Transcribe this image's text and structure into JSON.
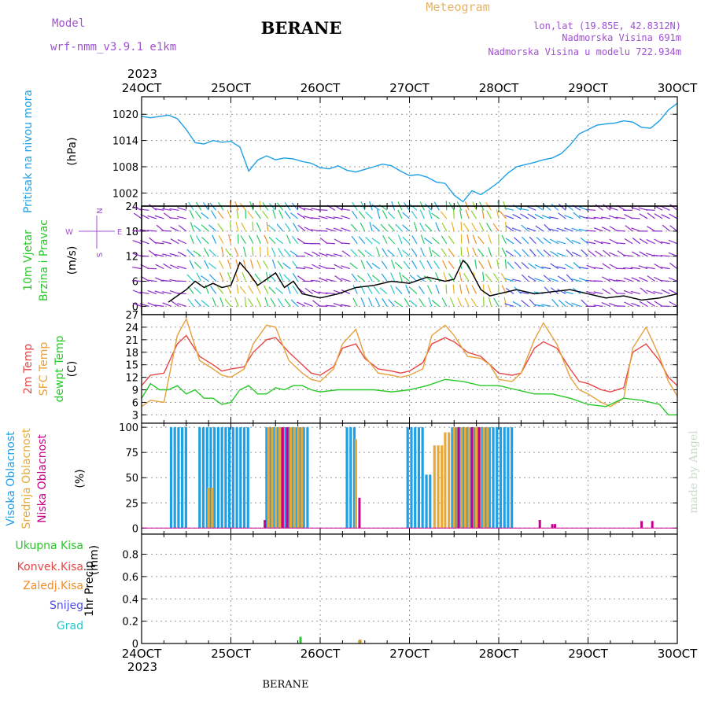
{
  "header": {
    "title": "BERANE",
    "model_label": "Model",
    "model_name": "wrf-nmm_v3.9.1  e1km",
    "meteogram_label": "Meteogram",
    "lonlat": "lon,lat (19.85E, 42.8312N)",
    "altitude": "Nadmorska Visina 691m",
    "model_altitude": "Nadmorska Visina u modelu 722.934m",
    "footer": "BERANE",
    "credit": "made by Angel"
  },
  "colors": {
    "pressure": "#1ea0e6",
    "temp2m": "#e64646",
    "sfctemp": "#e6a03c",
    "dewpt": "#28c828",
    "cloud_high": "#1ea0e6",
    "cloud_mid": "#e6aa3c",
    "cloud_low": "#c8008c",
    "precip_total": "#28c828",
    "precip_conv": "#e64646",
    "precip_frz": "#f08c28",
    "precip_snow": "#5050e6",
    "precip_hail": "#28c8c8",
    "title_purple": "#a050d2",
    "meteogram_orange": "#e6b464"
  },
  "chart_data": [
    {
      "type": "line",
      "panel": "pressure",
      "x_ticks": [
        "24OCT",
        "25OCT",
        "26OCT",
        "27OCT",
        "28OCT",
        "29OCT",
        "30OCT"
      ],
      "x_year": "2023",
      "ylabel_lines": [
        "Pritisak na nivou mora"
      ],
      "unit": "(hPa)",
      "yticks": [
        1002,
        1008,
        1014,
        1020
      ],
      "ylim": [
        999,
        1024
      ],
      "x_unit": "days since 24OCT",
      "series": [
        {
          "name": "Pritisak na nivou mora",
          "color_key": "pressure",
          "x": [
            0,
            0.1,
            0.3,
            0.4,
            0.5,
            0.6,
            0.7,
            0.8,
            0.9,
            1.0,
            1.1,
            1.2,
            1.3,
            1.4,
            1.5,
            1.6,
            1.7,
            1.8,
            1.9,
            2.0,
            2.1,
            2.2,
            2.3,
            2.4,
            2.5,
            2.6,
            2.7,
            2.8,
            2.9,
            3.0,
            3.1,
            3.2,
            3.3,
            3.4,
            3.5,
            3.6,
            3.7,
            3.8,
            3.9,
            4.0,
            4.1,
            4.2,
            4.3,
            4.4,
            4.5,
            4.6,
            4.7,
            4.8,
            4.9,
            5.0,
            5.1,
            5.2,
            5.3,
            5.4,
            5.5,
            5.6,
            5.7,
            5.8,
            5.9,
            6.0
          ],
          "y": [
            1019.5,
            1019.2,
            1019.8,
            1019.0,
            1016.5,
            1013.5,
            1013.2,
            1014.0,
            1013.6,
            1013.8,
            1012.5,
            1007.0,
            1009.5,
            1010.5,
            1009.6,
            1010.0,
            1009.8,
            1009.2,
            1008.8,
            1007.8,
            1007.5,
            1008.2,
            1007.2,
            1006.8,
            1007.4,
            1008.0,
            1008.6,
            1008.2,
            1007.0,
            1006.0,
            1006.2,
            1005.6,
            1004.5,
            1004.2,
            1001.5,
            1000.0,
            1002.5,
            1001.6,
            1003.0,
            1004.5,
            1006.5,
            1008.0,
            1008.5,
            1009.0,
            1009.6,
            1010.0,
            1011.0,
            1013.0,
            1015.5,
            1016.5,
            1017.5,
            1017.8,
            1018.0,
            1018.5,
            1018.2,
            1017.0,
            1016.8,
            1018.5,
            1021.0,
            1022.5
          ]
        }
      ]
    },
    {
      "type": "line",
      "panel": "wind",
      "ylabel_lines": [
        "10m Vjetar",
        "Brzina i Pravac"
      ],
      "unit": "(m/s)",
      "yticks": [
        0,
        6,
        12,
        18,
        24
      ],
      "ylim": [
        -2,
        24
      ],
      "compass": {
        "north": "N",
        "south": "S",
        "west": "W",
        "east": "E"
      },
      "series": [
        {
          "name": "wind speed",
          "color": "#000000",
          "x": [
            0.3,
            0.4,
            0.5,
            0.6,
            0.7,
            0.8,
            0.9,
            1.0,
            1.1,
            1.2,
            1.3,
            1.4,
            1.5,
            1.6,
            1.7,
            1.8,
            1.9,
            2.0,
            2.2,
            2.4,
            2.6,
            2.8,
            3.0,
            3.2,
            3.4,
            3.5,
            3.6,
            3.65,
            3.7,
            3.8,
            3.9,
            4.0,
            4.2,
            4.4,
            4.6,
            4.8,
            5.0,
            5.2,
            5.4,
            5.6,
            5.8,
            6.0
          ],
          "y": [
            1.0,
            2.5,
            4.0,
            6.0,
            4.5,
            5.5,
            4.5,
            5.0,
            10.5,
            8.0,
            5.0,
            6.5,
            8.0,
            4.5,
            6.0,
            3.0,
            2.5,
            2.0,
            3.0,
            4.5,
            5.0,
            6.0,
            5.5,
            7.0,
            6.0,
            6.5,
            11.0,
            10.0,
            8.0,
            4.0,
            2.5,
            3.0,
            4.0,
            3.0,
            3.5,
            4.0,
            3.0,
            2.0,
            2.5,
            1.5,
            2.0,
            3.0
          ]
        }
      ]
    },
    {
      "type": "line",
      "panel": "temperature",
      "ylabel_lines": [
        "2m Temp",
        "SFC Temp",
        "dewpt Temp"
      ],
      "unit": "(C)",
      "yticks": [
        3,
        6,
        9,
        12,
        15,
        18,
        21,
        24,
        27
      ],
      "ylim": [
        1,
        27
      ],
      "series": [
        {
          "name": "2m Temp",
          "color_key": "temp2m",
          "x": [
            0,
            0.1,
            0.25,
            0.4,
            0.5,
            0.65,
            0.8,
            0.9,
            1.0,
            1.15,
            1.25,
            1.4,
            1.5,
            1.65,
            1.8,
            1.9,
            2.0,
            2.15,
            2.25,
            2.4,
            2.5,
            2.65,
            2.8,
            2.9,
            3.0,
            3.15,
            3.25,
            3.4,
            3.5,
            3.65,
            3.8,
            3.9,
            4.0,
            4.15,
            4.25,
            4.4,
            4.5,
            4.65,
            4.8,
            4.9,
            5.0,
            5.15,
            5.25,
            5.4,
            5.5,
            5.65,
            5.8,
            5.9,
            6.0
          ],
          "y": [
            10,
            12.5,
            13,
            20,
            22,
            17,
            15,
            13.5,
            14,
            14.5,
            18,
            21,
            21.5,
            18,
            15,
            13,
            12.5,
            14.5,
            19,
            20,
            16.5,
            14,
            13.5,
            13,
            13.5,
            15.5,
            20,
            21.5,
            20.5,
            18,
            17,
            15,
            13,
            12.5,
            13,
            19,
            20.5,
            19,
            14,
            11,
            10.5,
            9,
            8.5,
            9.5,
            18,
            20,
            16,
            12,
            10
          ]
        },
        {
          "name": "SFC Temp",
          "color_key": "sfctemp",
          "x": [
            0,
            0.1,
            0.25,
            0.4,
            0.5,
            0.65,
            0.8,
            0.9,
            1.0,
            1.15,
            1.25,
            1.4,
            1.5,
            1.65,
            1.8,
            1.9,
            2.0,
            2.15,
            2.25,
            2.4,
            2.5,
            2.65,
            2.8,
            2.9,
            3.0,
            3.15,
            3.25,
            3.4,
            3.5,
            3.65,
            3.8,
            3.9,
            4.0,
            4.15,
            4.25,
            4.4,
            4.5,
            4.65,
            4.8,
            4.9,
            5.0,
            5.15,
            5.25,
            5.4,
            5.5,
            5.65,
            5.8,
            5.9,
            6.0
          ],
          "y": [
            5,
            6.5,
            6,
            22,
            26,
            16,
            14,
            12.5,
            12,
            14,
            20,
            24.5,
            24,
            16,
            13,
            11.5,
            11,
            14,
            20,
            23.5,
            17,
            13,
            12.5,
            12,
            12.5,
            14,
            22,
            24.5,
            22,
            17,
            16.5,
            15,
            11.5,
            11,
            13,
            21,
            25,
            20,
            12,
            9,
            8,
            6,
            5,
            7,
            19,
            24,
            17,
            11,
            7.5
          ]
        },
        {
          "name": "dewpt Temp",
          "color_key": "dewpt",
          "x": [
            0,
            0.1,
            0.2,
            0.3,
            0.4,
            0.5,
            0.6,
            0.7,
            0.8,
            0.9,
            1.0,
            1.1,
            1.2,
            1.3,
            1.4,
            1.5,
            1.6,
            1.7,
            1.8,
            1.9,
            2.0,
            2.2,
            2.4,
            2.6,
            2.8,
            3.0,
            3.2,
            3.4,
            3.6,
            3.8,
            4.0,
            4.2,
            4.4,
            4.6,
            4.8,
            5.0,
            5.2,
            5.4,
            5.6,
            5.8,
            5.9,
            6.0
          ],
          "y": [
            7,
            10.5,
            9,
            9,
            10,
            8,
            9,
            7,
            7,
            5.5,
            6,
            9,
            10,
            8,
            8,
            9.5,
            9,
            10,
            10,
            9,
            8.5,
            9,
            9,
            9,
            8.5,
            9,
            10,
            11.5,
            11,
            10,
            10,
            9,
            8,
            8,
            7,
            5.5,
            5,
            7,
            6.5,
            5.5,
            3,
            3
          ]
        }
      ]
    },
    {
      "type": "bar",
      "panel": "clouds",
      "ylabel_lines": [
        "Visoka Oblacnost",
        "Srednja Oblacnost",
        "Niska Oblacnost"
      ],
      "unit": "(%)",
      "yticks": [
        0,
        25,
        50,
        75,
        100
      ],
      "ylim": [
        -6,
        104
      ],
      "series": [
        {
          "name": "Visoka Oblacnost",
          "color_key": "cloud_high",
          "ranges": [
            [
              0.33,
              0.5,
              100
            ],
            [
              0.65,
              1.22,
              100
            ],
            [
              1.4,
              1.87,
              100
            ],
            [
              2.3,
              2.4,
              100
            ],
            [
              2.98,
              3.18,
              100
            ],
            [
              3.19,
              3.27,
              53
            ],
            [
              3.48,
              4.18,
              100
            ]
          ]
        },
        {
          "name": "Srednja Oblacnost",
          "color_key": "cloud_mid",
          "ranges": [
            [
              0.75,
              0.8,
              40
            ],
            [
              1.42,
              1.83,
              100
            ],
            [
              2.4,
              2.42,
              88
            ],
            [
              3.28,
              3.38,
              82
            ],
            [
              3.4,
              3.48,
              95
            ],
            [
              3.5,
              3.9,
              100
            ]
          ]
        },
        {
          "name": "Niska Oblacnost",
          "color_key": "cloud_low",
          "points": [
            [
              1.38,
              8
            ],
            [
              1.58,
              100
            ],
            [
              1.63,
              100
            ],
            [
              2.44,
              30
            ],
            [
              3.55,
              100
            ],
            [
              3.7,
              100
            ],
            [
              3.78,
              100
            ],
            [
              4.46,
              8
            ],
            [
              4.6,
              4
            ],
            [
              4.63,
              4
            ],
            [
              5.6,
              7
            ],
            [
              5.72,
              7
            ]
          ]
        }
      ]
    },
    {
      "type": "bar",
      "panel": "precipitation",
      "ylabel_lines": [
        "1hr Precip"
      ],
      "unit": "(mm)",
      "yticks": [
        0,
        0.2,
        0.4,
        0.6,
        0.8
      ],
      "ylim": [
        0,
        0.98
      ],
      "legend": [
        "Ukupna  Kisa",
        "Konvek.Kisa",
        "Zaledj.Kisa",
        "Snijeg",
        "Grad"
      ],
      "series": [
        {
          "name": "Ukupna  Kisa",
          "color_key": "precip_total",
          "points": [
            [
              1.78,
              0.06
            ],
            [
              2.44,
              0.03
            ]
          ]
        },
        {
          "name": "Zaledj.Kisa",
          "color_key": "precip_frz",
          "points": [
            [
              2.45,
              0.035
            ]
          ]
        }
      ]
    }
  ]
}
